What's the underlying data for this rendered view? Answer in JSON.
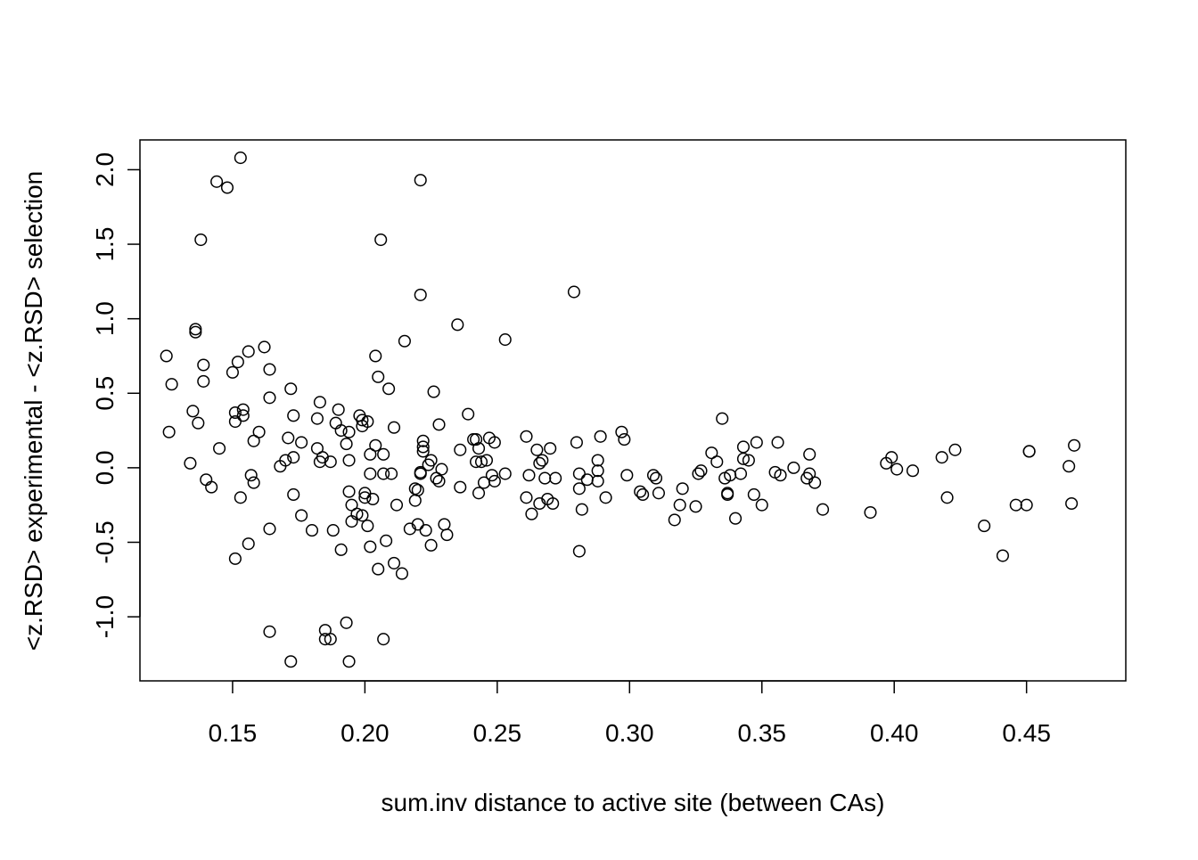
{
  "chart_data": {
    "type": "scatter",
    "title": "",
    "xlabel": "sum.inv distance to active site (between CAs)",
    "ylabel": "<z.RSD> experimental - <z.RSD> selection",
    "xlim": [
      0.115,
      0.4875
    ],
    "ylim": [
      -1.43,
      2.2
    ],
    "x_ticks": [
      {
        "value": 0.15,
        "label": "0.15"
      },
      {
        "value": 0.2,
        "label": "0.20"
      },
      {
        "value": 0.25,
        "label": "0.25"
      },
      {
        "value": 0.3,
        "label": "0.30"
      },
      {
        "value": 0.35,
        "label": "0.35"
      },
      {
        "value": 0.4,
        "label": "0.40"
      },
      {
        "value": 0.45,
        "label": "0.45"
      }
    ],
    "y_ticks": [
      {
        "value": -1.0,
        "label": "-1.0"
      },
      {
        "value": -0.5,
        "label": "-0.5"
      },
      {
        "value": 0.0,
        "label": "0.0"
      },
      {
        "value": 0.5,
        "label": "0.5"
      },
      {
        "value": 1.0,
        "label": "1.0"
      },
      {
        "value": 1.5,
        "label": "1.5"
      },
      {
        "value": 2.0,
        "label": "2.0"
      }
    ],
    "grid": false,
    "legend": "none",
    "marker": "open-circle",
    "marker_color": "#000000",
    "points": [
      [
        0.125,
        0.75
      ],
      [
        0.126,
        0.24
      ],
      [
        0.127,
        0.56
      ],
      [
        0.134,
        0.03
      ],
      [
        0.135,
        0.38
      ],
      [
        0.136,
        0.93
      ],
      [
        0.136,
        0.91
      ],
      [
        0.137,
        0.3
      ],
      [
        0.138,
        1.53
      ],
      [
        0.139,
        0.69
      ],
      [
        0.139,
        0.58
      ],
      [
        0.14,
        -0.08
      ],
      [
        0.142,
        -0.13
      ],
      [
        0.144,
        1.92
      ],
      [
        0.145,
        0.13
      ],
      [
        0.148,
        1.88
      ],
      [
        0.15,
        0.64
      ],
      [
        0.151,
        0.37
      ],
      [
        0.151,
        0.31
      ],
      [
        0.151,
        -0.61
      ],
      [
        0.152,
        0.71
      ],
      [
        0.153,
        2.08
      ],
      [
        0.153,
        -0.2
      ],
      [
        0.154,
        0.39
      ],
      [
        0.154,
        0.35
      ],
      [
        0.156,
        0.78
      ],
      [
        0.156,
        -0.51
      ],
      [
        0.157,
        -0.05
      ],
      [
        0.158,
        0.18
      ],
      [
        0.158,
        -0.1
      ],
      [
        0.16,
        0.24
      ],
      [
        0.162,
        0.81
      ],
      [
        0.164,
        0.66
      ],
      [
        0.164,
        0.47
      ],
      [
        0.164,
        -0.41
      ],
      [
        0.164,
        -1.1
      ],
      [
        0.168,
        0.01
      ],
      [
        0.17,
        0.05
      ],
      [
        0.171,
        0.2
      ],
      [
        0.172,
        -1.3
      ],
      [
        0.172,
        0.53
      ],
      [
        0.173,
        0.35
      ],
      [
        0.173,
        0.07
      ],
      [
        0.173,
        -0.18
      ],
      [
        0.176,
        0.17
      ],
      [
        0.176,
        -0.32
      ],
      [
        0.18,
        -0.42
      ],
      [
        0.182,
        0.33
      ],
      [
        0.182,
        0.13
      ],
      [
        0.183,
        0.44
      ],
      [
        0.183,
        0.04
      ],
      [
        0.184,
        0.07
      ],
      [
        0.185,
        -1.15
      ],
      [
        0.185,
        -1.09
      ],
      [
        0.187,
        0.04
      ],
      [
        0.187,
        -1.15
      ],
      [
        0.188,
        -0.42
      ],
      [
        0.189,
        0.3
      ],
      [
        0.19,
        0.39
      ],
      [
        0.191,
        -0.55
      ],
      [
        0.191,
        0.25
      ],
      [
        0.193,
        0.16
      ],
      [
        0.193,
        -1.04
      ],
      [
        0.194,
        0.24
      ],
      [
        0.194,
        0.05
      ],
      [
        0.194,
        -0.16
      ],
      [
        0.194,
        -1.3
      ],
      [
        0.195,
        -0.36
      ],
      [
        0.195,
        -0.25
      ],
      [
        0.197,
        -0.31
      ],
      [
        0.198,
        0.35
      ],
      [
        0.199,
        0.32
      ],
      [
        0.199,
        0.28
      ],
      [
        0.199,
        -0.32
      ],
      [
        0.2,
        -0.2
      ],
      [
        0.2,
        -0.17
      ],
      [
        0.201,
        0.31
      ],
      [
        0.201,
        -0.39
      ],
      [
        0.202,
        0.09
      ],
      [
        0.202,
        -0.04
      ],
      [
        0.202,
        -0.53
      ],
      [
        0.203,
        -0.21
      ],
      [
        0.204,
        0.75
      ],
      [
        0.204,
        0.15
      ],
      [
        0.205,
        0.61
      ],
      [
        0.205,
        -0.68
      ],
      [
        0.206,
        1.53
      ],
      [
        0.207,
        0.09
      ],
      [
        0.207,
        -0.04
      ],
      [
        0.207,
        -1.15
      ],
      [
        0.208,
        -0.49
      ],
      [
        0.209,
        0.53
      ],
      [
        0.21,
        -0.04
      ],
      [
        0.211,
        0.27
      ],
      [
        0.211,
        -0.64
      ],
      [
        0.212,
        -0.25
      ],
      [
        0.214,
        -0.71
      ],
      [
        0.215,
        0.85
      ],
      [
        0.217,
        -0.41
      ],
      [
        0.219,
        -0.14
      ],
      [
        0.219,
        -0.22
      ],
      [
        0.22,
        -0.15
      ],
      [
        0.22,
        -0.38
      ],
      [
        0.221,
        -0.04
      ],
      [
        0.221,
        -0.03
      ],
      [
        0.221,
        1.16
      ],
      [
        0.221,
        1.93
      ],
      [
        0.222,
        0.18
      ],
      [
        0.222,
        0.14
      ],
      [
        0.222,
        0.11
      ],
      [
        0.223,
        -0.42
      ],
      [
        0.224,
        0.02
      ],
      [
        0.225,
        0.05
      ],
      [
        0.225,
        -0.52
      ],
      [
        0.226,
        0.51
      ],
      [
        0.227,
        -0.07
      ],
      [
        0.228,
        0.29
      ],
      [
        0.228,
        -0.09
      ],
      [
        0.229,
        -0.01
      ],
      [
        0.23,
        -0.38
      ],
      [
        0.231,
        -0.45
      ],
      [
        0.235,
        0.96
      ],
      [
        0.236,
        0.12
      ],
      [
        0.236,
        -0.13
      ],
      [
        0.239,
        0.36
      ],
      [
        0.241,
        0.19
      ],
      [
        0.242,
        0.19
      ],
      [
        0.242,
        0.04
      ],
      [
        0.243,
        -0.17
      ],
      [
        0.243,
        0.13
      ],
      [
        0.244,
        0.04
      ],
      [
        0.245,
        -0.1
      ],
      [
        0.246,
        0.05
      ],
      [
        0.247,
        0.2
      ],
      [
        0.248,
        -0.05
      ],
      [
        0.249,
        0.17
      ],
      [
        0.249,
        -0.09
      ],
      [
        0.253,
        0.86
      ],
      [
        0.253,
        -0.04
      ],
      [
        0.261,
        0.21
      ],
      [
        0.261,
        -0.2
      ],
      [
        0.262,
        -0.05
      ],
      [
        0.263,
        -0.31
      ],
      [
        0.265,
        0.12
      ],
      [
        0.266,
        0.03
      ],
      [
        0.266,
        -0.24
      ],
      [
        0.267,
        0.05
      ],
      [
        0.268,
        -0.07
      ],
      [
        0.269,
        -0.21
      ],
      [
        0.27,
        0.13
      ],
      [
        0.271,
        -0.24
      ],
      [
        0.272,
        -0.07
      ],
      [
        0.279,
        1.18
      ],
      [
        0.28,
        0.17
      ],
      [
        0.281,
        -0.04
      ],
      [
        0.281,
        -0.14
      ],
      [
        0.281,
        -0.56
      ],
      [
        0.282,
        -0.28
      ],
      [
        0.284,
        -0.08
      ],
      [
        0.288,
        0.05
      ],
      [
        0.288,
        -0.02
      ],
      [
        0.288,
        -0.09
      ],
      [
        0.289,
        0.21
      ],
      [
        0.291,
        -0.2
      ],
      [
        0.297,
        0.24
      ],
      [
        0.298,
        0.19
      ],
      [
        0.299,
        -0.05
      ],
      [
        0.304,
        -0.16
      ],
      [
        0.305,
        -0.18
      ],
      [
        0.309,
        -0.05
      ],
      [
        0.31,
        -0.07
      ],
      [
        0.311,
        -0.17
      ],
      [
        0.317,
        -0.35
      ],
      [
        0.319,
        -0.25
      ],
      [
        0.32,
        -0.14
      ],
      [
        0.325,
        -0.26
      ],
      [
        0.326,
        -0.04
      ],
      [
        0.327,
        -0.02
      ],
      [
        0.331,
        0.1
      ],
      [
        0.333,
        0.04
      ],
      [
        0.335,
        0.33
      ],
      [
        0.336,
        -0.07
      ],
      [
        0.337,
        -0.18
      ],
      [
        0.337,
        -0.17
      ],
      [
        0.338,
        -0.05
      ],
      [
        0.34,
        -0.34
      ],
      [
        0.342,
        -0.04
      ],
      [
        0.343,
        0.06
      ],
      [
        0.343,
        0.14
      ],
      [
        0.345,
        0.05
      ],
      [
        0.347,
        -0.18
      ],
      [
        0.348,
        0.17
      ],
      [
        0.35,
        -0.25
      ],
      [
        0.355,
        -0.03
      ],
      [
        0.356,
        0.17
      ],
      [
        0.357,
        -0.05
      ],
      [
        0.362,
        0.0
      ],
      [
        0.367,
        -0.07
      ],
      [
        0.368,
        -0.04
      ],
      [
        0.368,
        0.09
      ],
      [
        0.37,
        -0.1
      ],
      [
        0.373,
        -0.28
      ],
      [
        0.391,
        -0.3
      ],
      [
        0.397,
        0.03
      ],
      [
        0.399,
        0.07
      ],
      [
        0.401,
        -0.01
      ],
      [
        0.407,
        -0.02
      ],
      [
        0.418,
        0.07
      ],
      [
        0.42,
        -0.2
      ],
      [
        0.423,
        0.12
      ],
      [
        0.434,
        -0.39
      ],
      [
        0.441,
        -0.59
      ],
      [
        0.446,
        -0.25
      ],
      [
        0.45,
        -0.25
      ],
      [
        0.451,
        0.11
      ],
      [
        0.451,
        0.11
      ],
      [
        0.466,
        0.01
      ],
      [
        0.467,
        -0.24
      ],
      [
        0.468,
        0.15
      ]
    ]
  }
}
